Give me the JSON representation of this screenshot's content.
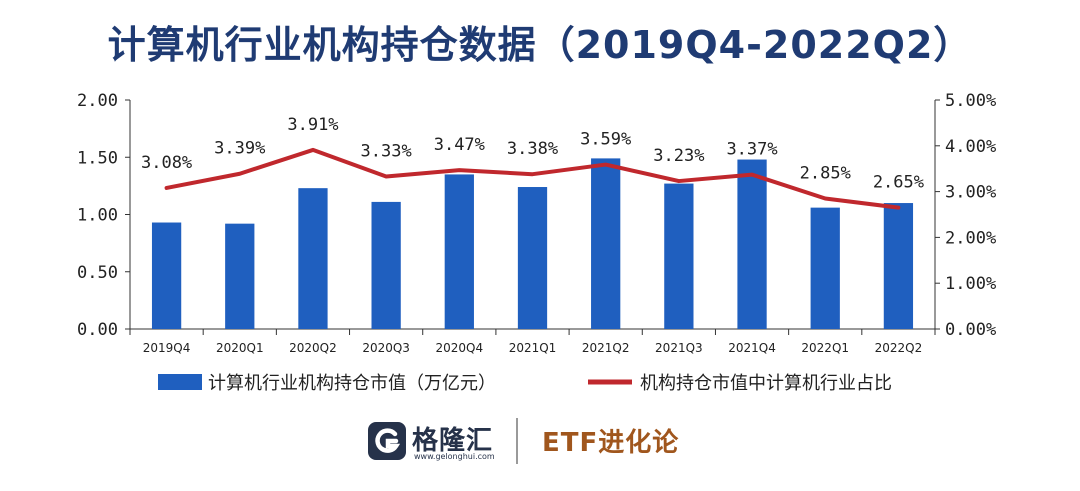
{
  "title": "计算机行业机构持仓数据（2019Q4-2022Q2）",
  "chart_data": {
    "type": "bar",
    "categories": [
      "2019Q4",
      "2020Q1",
      "2020Q2",
      "2020Q3",
      "2020Q4",
      "2021Q1",
      "2021Q2",
      "2021Q3",
      "2021Q4",
      "2022Q1",
      "2022Q2"
    ],
    "series": [
      {
        "name": "计算机行业机构持仓市值（万亿元）",
        "type": "bar",
        "axis": "left",
        "color": "#1f5fbf",
        "values": [
          0.93,
          0.92,
          1.23,
          1.11,
          1.35,
          1.24,
          1.49,
          1.27,
          1.48,
          1.06,
          1.1
        ]
      },
      {
        "name": "机构持仓市值中计算机行业占比",
        "type": "line",
        "axis": "right",
        "color": "#c0282d",
        "values": [
          3.08,
          3.39,
          3.91,
          3.33,
          3.47,
          3.38,
          3.59,
          3.23,
          3.37,
          2.85,
          2.65
        ],
        "labels": [
          "3.08%",
          "3.39%",
          "3.91%",
          "3.33%",
          "3.47%",
          "3.38%",
          "3.59%",
          "3.23%",
          "3.37%",
          "2.85%",
          "2.65%"
        ]
      }
    ],
    "y_left": {
      "min": 0,
      "max": 2,
      "ticks": [
        "0.00",
        "0.50",
        "1.00",
        "1.50",
        "2.00"
      ]
    },
    "y_right": {
      "min": 0,
      "max": 5,
      "ticks": [
        "0.00%",
        "1.00%",
        "2.00%",
        "3.00%",
        "4.00%",
        "5.00%"
      ]
    },
    "legend_position": "bottom"
  },
  "footer": {
    "brand_name": "格隆汇",
    "brand_url": "www.gelonghui.com",
    "partner_name": "ETF进化论"
  },
  "colors": {
    "title": "#1f3b73",
    "bar": "#1f5fbf",
    "line": "#c0282d",
    "axis": "#333333"
  }
}
